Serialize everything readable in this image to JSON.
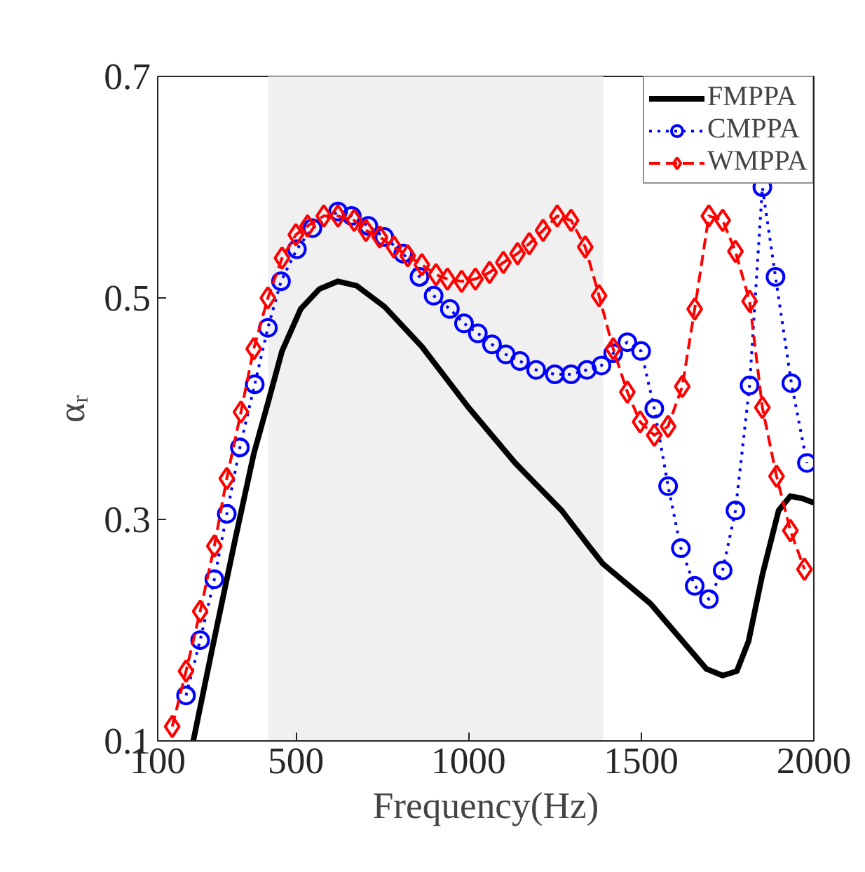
{
  "chart_data": {
    "type": "line",
    "xlabel": "Frequency(Hz)",
    "ylabel": "αᵣ",
    "xlim": [
      100,
      2000
    ],
    "xticks": [
      100,
      500,
      1000,
      1500,
      2000
    ],
    "ylim": [
      0.1,
      0.7
    ],
    "yticks": [
      0.1,
      0.3,
      0.5,
      0.7
    ],
    "grid": false,
    "legend": "top right",
    "bands": [
      {
        "axis": "x",
        "from": 420,
        "to": 1390,
        "color": "#f0f0f0"
      }
    ],
    "series": [
      {
        "name": "FMPPA",
        "color": "#000000",
        "marker": "none",
        "line_style": "solid",
        "x": [
          203,
          257,
          325,
          378,
          419,
          460,
          514,
          568,
          622,
          676,
          757,
          865,
          1000,
          1135,
          1270,
          1351,
          1389,
          1527,
          1689,
          1736,
          1777,
          1811,
          1851,
          1898,
          1932,
          1966,
          2000
        ],
        "values": [
          0.1,
          0.182,
          0.283,
          0.359,
          0.405,
          0.452,
          0.49,
          0.508,
          0.515,
          0.511,
          0.492,
          0.456,
          0.401,
          0.351,
          0.308,
          0.275,
          0.26,
          0.224,
          0.165,
          0.159,
          0.163,
          0.19,
          0.25,
          0.308,
          0.321,
          0.319,
          0.315
        ]
      },
      {
        "name": "CMPPA",
        "color": "#0000ff",
        "marker": "circle",
        "line_style": "dotted",
        "x": [
          182,
          223,
          264,
          300,
          338,
          381,
          419,
          457,
          503,
          548,
          622,
          662,
          710,
          756,
          811,
          858,
          899,
          946,
          987,
          1027,
          1068,
          1108,
          1149,
          1196,
          1250,
          1297,
          1343,
          1385,
          1419,
          1460,
          1500,
          1538,
          1578,
          1615,
          1655,
          1696,
          1736,
          1773,
          1814,
          1851,
          1889,
          1935,
          1980
        ],
        "values": [
          0.141,
          0.191,
          0.246,
          0.305,
          0.365,
          0.422,
          0.473,
          0.515,
          0.544,
          0.563,
          0.578,
          0.574,
          0.565,
          0.555,
          0.54,
          0.519,
          0.502,
          0.49,
          0.477,
          0.468,
          0.458,
          0.449,
          0.443,
          0.435,
          0.431,
          0.431,
          0.435,
          0.439,
          0.45,
          0.46,
          0.452,
          0.4,
          0.33,
          0.274,
          0.24,
          0.228,
          0.254,
          0.308,
          0.421,
          0.6,
          0.519,
          0.423,
          0.351
        ]
      },
      {
        "name": "WMPPA",
        "color": "#ff0000",
        "marker": "diamond",
        "line_style": "dashed",
        "x": [
          142,
          182,
          223,
          264,
          300,
          341,
          378,
          419,
          460,
          500,
          534,
          581,
          622,
          669,
          703,
          743,
          784,
          824,
          865,
          906,
          939,
          980,
          1020,
          1061,
          1101,
          1142,
          1176,
          1216,
          1257,
          1297,
          1338,
          1378,
          1419,
          1460,
          1497,
          1538,
          1578,
          1619,
          1655,
          1696,
          1736,
          1773,
          1814,
          1851,
          1892,
          1932,
          1973
        ],
        "values": [
          0.113,
          0.163,
          0.217,
          0.276,
          0.337,
          0.397,
          0.454,
          0.5,
          0.536,
          0.557,
          0.565,
          0.574,
          0.574,
          0.57,
          0.561,
          0.555,
          0.546,
          0.538,
          0.53,
          0.521,
          0.517,
          0.515,
          0.517,
          0.523,
          0.532,
          0.54,
          0.549,
          0.561,
          0.574,
          0.57,
          0.546,
          0.502,
          0.454,
          0.415,
          0.388,
          0.376,
          0.384,
          0.42,
          0.49,
          0.574,
          0.57,
          0.542,
          0.497,
          0.401,
          0.339,
          0.29,
          0.255
        ]
      }
    ]
  }
}
